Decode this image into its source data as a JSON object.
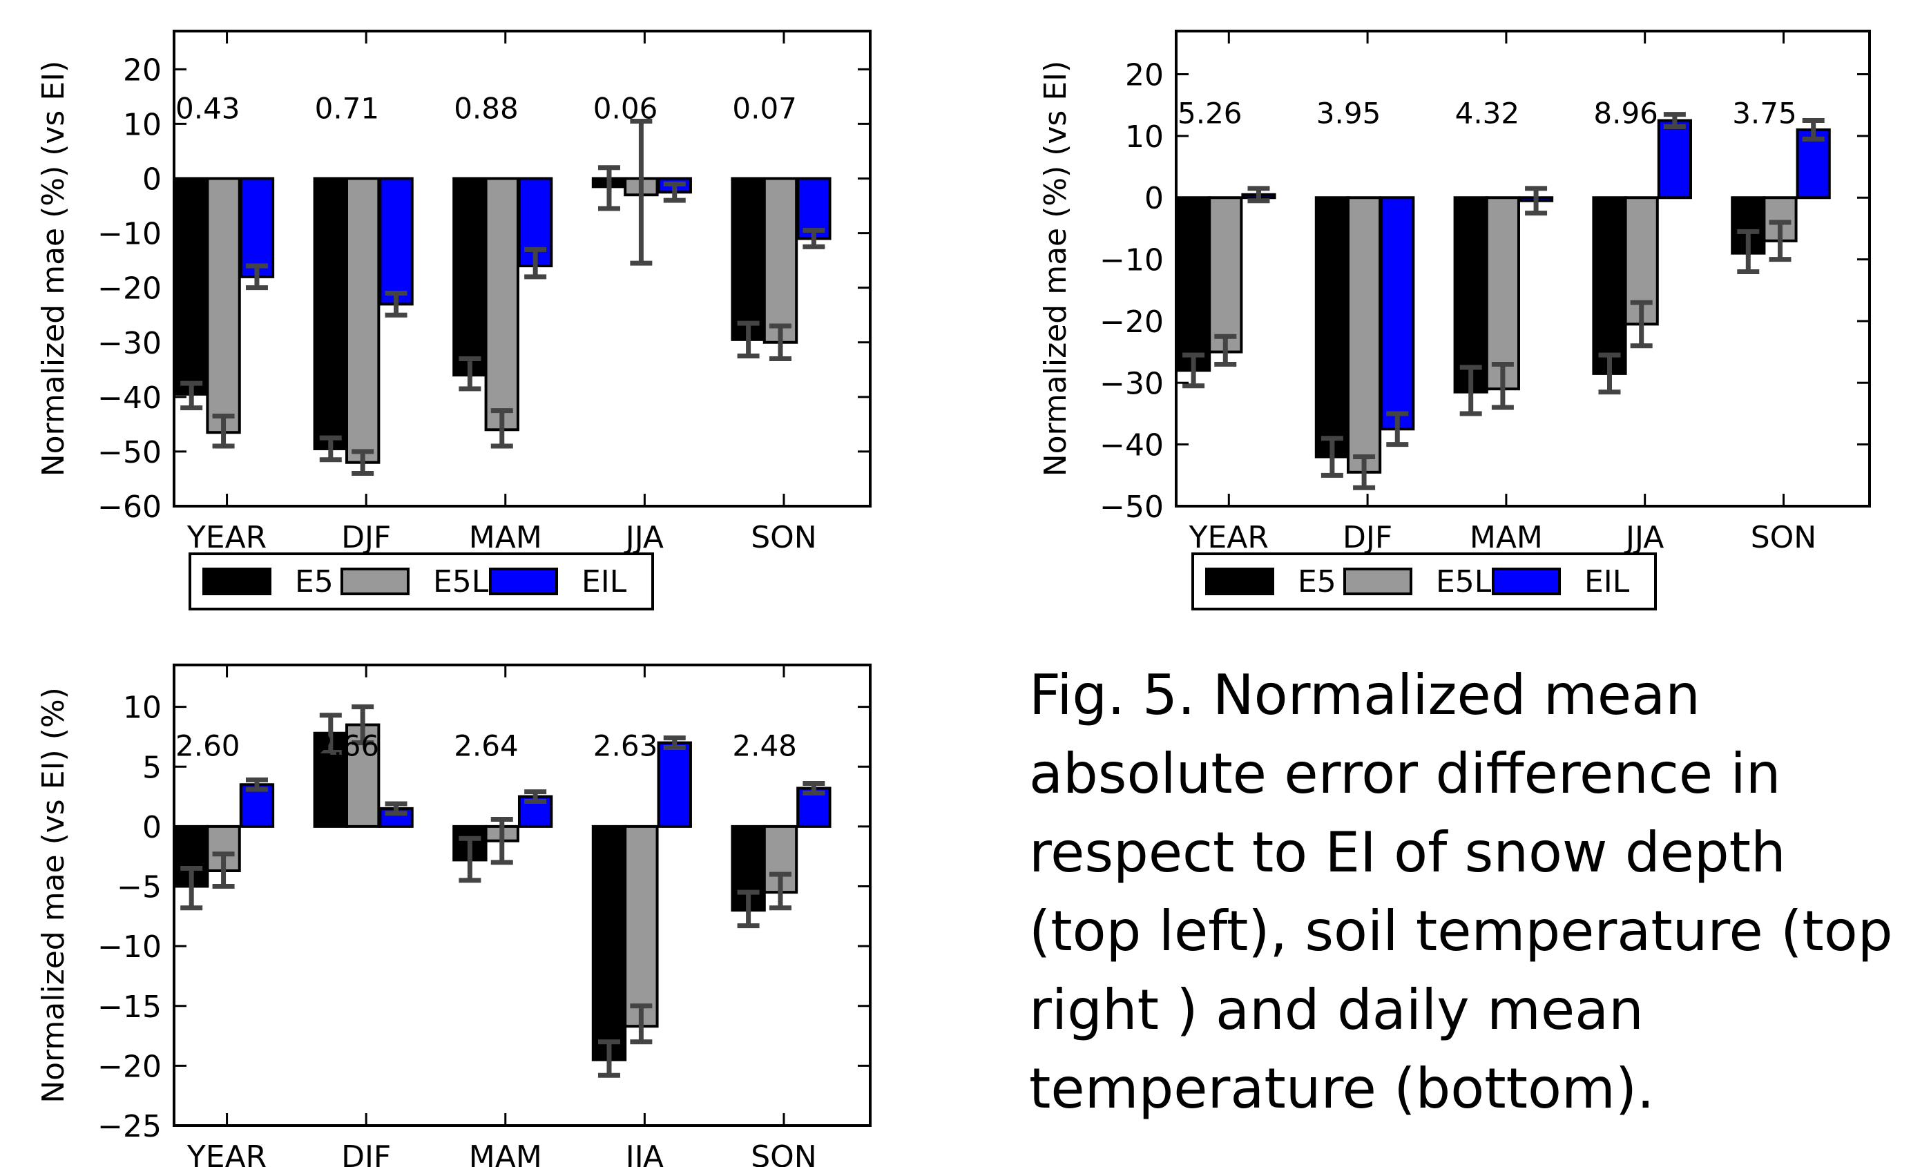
{
  "caption": "Fig. 5. Normalized mean absolute error difference in respect to EI of snow depth (top left), soil temperature (top right ) and daily mean temperature (bottom).",
  "colors": {
    "E5": "#000000",
    "E5L": "#999999",
    "EIL": "#0000ff",
    "errorbar": "#444444"
  },
  "chart_data": [
    {
      "type": "bar",
      "panel": "top left",
      "ylabel": "Normalized mae (%)  (vs EI)",
      "ylim": [
        -60,
        27
      ],
      "yticks": [
        -60,
        -50,
        -40,
        -30,
        -20,
        -10,
        0,
        10,
        20
      ],
      "categories": [
        "YEAR",
        "DJF",
        "MAM",
        "JJA",
        "SON"
      ],
      "top_values": [
        "0.43",
        "0.71",
        "0.88",
        "0.06",
        "0.07"
      ],
      "legend": "below",
      "grid": false,
      "series": [
        {
          "name": "E5",
          "values": [
            -39.5,
            -49.5,
            -36,
            -1.5,
            -29.5
          ],
          "err_low": [
            -42,
            -51.5,
            -38.5,
            -5.5,
            -32.5
          ],
          "err_high": [
            -37.5,
            -47.5,
            -33,
            2,
            -26.5
          ]
        },
        {
          "name": "E5L",
          "values": [
            -46.5,
            -52,
            -46,
            -3,
            -30
          ],
          "err_low": [
            -49,
            -54,
            -49,
            -15.5,
            -33
          ],
          "err_high": [
            -43.5,
            -50,
            -42.5,
            10.5,
            -27
          ]
        },
        {
          "name": "EIL",
          "values": [
            -18,
            -23,
            -16,
            -2.5,
            -11
          ],
          "err_low": [
            -20,
            -25,
            -18,
            -4,
            -12.5
          ],
          "err_high": [
            -16,
            -21,
            -13,
            -1,
            -9.5
          ]
        }
      ]
    },
    {
      "type": "bar",
      "panel": "top right",
      "ylabel": "Normalized mae (%)  (vs EI)",
      "ylim": [
        -50,
        27
      ],
      "yticks": [
        -50,
        -40,
        -30,
        -20,
        -10,
        0,
        10,
        20
      ],
      "categories": [
        "YEAR",
        "DJF",
        "MAM",
        "JJA",
        "SON"
      ],
      "top_values": [
        "5.26",
        "3.95",
        "4.32",
        "8.96",
        "3.75"
      ],
      "legend": "below",
      "grid": false,
      "series": [
        {
          "name": "E5",
          "values": [
            -28,
            -42,
            -31.5,
            -28.5,
            -9
          ],
          "err_low": [
            -30.5,
            -45,
            -35,
            -31.5,
            -12
          ],
          "err_high": [
            -25.5,
            -39,
            -27.5,
            -25.5,
            -5.5
          ]
        },
        {
          "name": "E5L",
          "values": [
            -25,
            -44.5,
            -31,
            -20.5,
            -7
          ],
          "err_low": [
            -27,
            -47,
            -34,
            -24,
            -10
          ],
          "err_high": [
            -22.5,
            -42,
            -27,
            -17,
            -4
          ]
        },
        {
          "name": "EIL",
          "values": [
            0.5,
            -37.5,
            -0.5,
            12.5,
            11
          ],
          "err_low": [
            -0.5,
            -40,
            -2.5,
            11.5,
            9.5
          ],
          "err_high": [
            1.5,
            -35,
            1.5,
            13.5,
            12.5
          ]
        }
      ]
    },
    {
      "type": "bar",
      "panel": "bottom",
      "ylabel": "Normalized mae (vs EI) (%)",
      "ylim": [
        -25,
        13.5
      ],
      "yticks": [
        -25,
        -20,
        -15,
        -10,
        -5,
        0,
        5,
        10
      ],
      "categories": [
        "YEAR",
        "DJF",
        "MAM",
        "JJA",
        "SON"
      ],
      "top_values": [
        "2.60",
        "2.66",
        "2.64",
        "2.63",
        "2.48"
      ],
      "legend": "none",
      "grid": false,
      "series": [
        {
          "name": "E5",
          "values": [
            -5,
            7.8,
            -2.8,
            -19.5,
            -7
          ],
          "err_low": [
            -6.8,
            6.2,
            -4.5,
            -20.8,
            -8.3
          ],
          "err_high": [
            -3.5,
            9.3,
            -1,
            -18,
            -5.5
          ]
        },
        {
          "name": "E5L",
          "values": [
            -3.7,
            8.5,
            -1.2,
            -16.7,
            -5.5
          ],
          "err_low": [
            -5,
            7,
            -3,
            -18,
            -6.8
          ],
          "err_high": [
            -2.3,
            10,
            0.6,
            -15,
            -4
          ]
        },
        {
          "name": "EIL",
          "values": [
            3.5,
            1.5,
            2.5,
            7,
            3.2
          ],
          "err_low": [
            3.1,
            1.1,
            2.1,
            6.6,
            2.8
          ],
          "err_high": [
            3.9,
            1.9,
            2.9,
            7.4,
            3.6
          ]
        }
      ]
    }
  ]
}
